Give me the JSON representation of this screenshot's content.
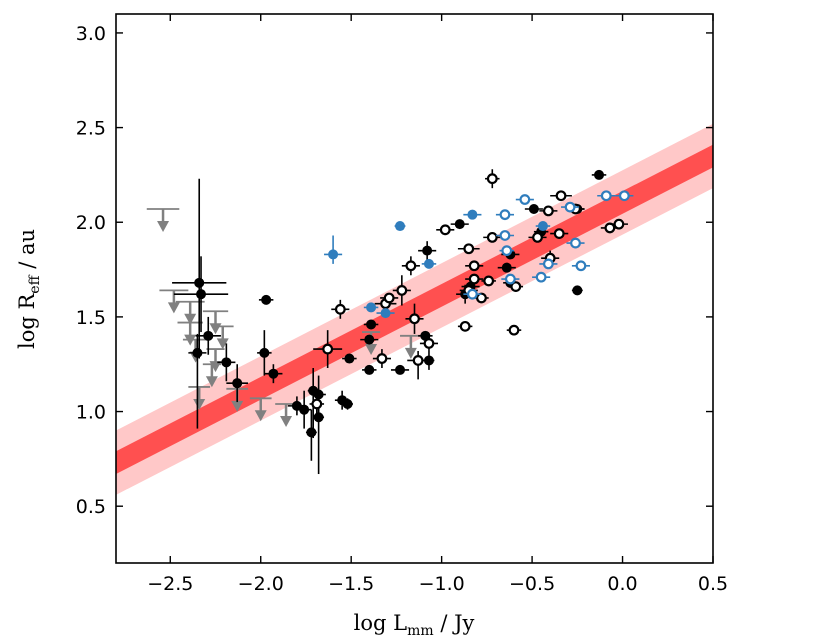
{
  "chart_data": {
    "type": "scatter",
    "title": "",
    "xlabel": {
      "main": "log L",
      "sub": "mm",
      "unit": " / Jy"
    },
    "ylabel": {
      "main": "log R",
      "sub": "eff",
      "unit": " / au"
    },
    "xlim": [
      -2.8,
      0.5
    ],
    "ylim": [
      0.2,
      3.1
    ],
    "xticks": [
      -2.5,
      -2.0,
      -1.5,
      -1.0,
      -0.5,
      0.0,
      0.5
    ],
    "xtick_labels": [
      "−2.5",
      "−2.0",
      "−1.5",
      "−1.0",
      "−0.5",
      "0.0",
      "0.5"
    ],
    "yticks": [
      0.5,
      1.0,
      1.5,
      2.0,
      2.5,
      3.0
    ],
    "ytick_labels": [
      "0.5",
      "1.0",
      "1.5",
      "2.0",
      "2.5",
      "3.0"
    ],
    "colors": {
      "fit_inner": "#ff5050",
      "fit_outer": "#ffc8c8",
      "black_points": "#000000",
      "blue_points": "#2f7dbd",
      "upper_limits": "#808080"
    },
    "fit": {
      "x": [
        -2.8,
        0.5
      ],
      "y": [
        0.73,
        2.35
      ],
      "inner_halfwidth": 0.06,
      "outer_halfwidth": 0.17
    },
    "series": [
      {
        "name": "black filled",
        "marker": "filled",
        "points": [
          {
            "x": -2.34,
            "y": 1.68,
            "xerr": 0.15,
            "yerr": [
              0.4,
              0.55
            ]
          },
          {
            "x": -2.33,
            "y": 1.62,
            "xerr": 0.15,
            "yerr": [
              0.2,
              0.2
            ]
          },
          {
            "x": -2.29,
            "y": 1.4,
            "xerr": 0.07,
            "yerr": [
              0.1,
              0.1
            ]
          },
          {
            "x": -2.35,
            "y": 1.31,
            "xerr": 0.05,
            "yerr": [
              0.4,
              0.1
            ]
          },
          {
            "x": -2.19,
            "y": 1.26,
            "xerr": 0.05,
            "yerr": [
              0.1,
              0.1
            ]
          },
          {
            "x": -2.13,
            "y": 1.15,
            "xerr": 0.06,
            "yerr": [
              0.1,
              0.1
            ]
          },
          {
            "x": -1.97,
            "y": 1.59,
            "xerr": 0.04,
            "yerr": [
              0.02,
              0.02
            ]
          },
          {
            "x": -1.98,
            "y": 1.31,
            "xerr": 0.04,
            "yerr": [
              0.12,
              0.12
            ]
          },
          {
            "x": -1.93,
            "y": 1.2,
            "xerr": 0.05,
            "yerr": [
              0.05,
              0.05
            ]
          },
          {
            "x": -1.8,
            "y": 1.03,
            "xerr": 0.05,
            "yerr": [
              0.05,
              0.05
            ]
          },
          {
            "x": -1.76,
            "y": 1.01,
            "xerr": 0.04,
            "yerr": [
              0.1,
              0.1
            ]
          },
          {
            "x": -1.71,
            "y": 1.11,
            "xerr": 0.03,
            "yerr": [
              0.25,
              0.12
            ]
          },
          {
            "x": -1.68,
            "y": 1.09,
            "xerr": 0.04,
            "yerr": [
              0.1,
              0.1
            ]
          },
          {
            "x": -1.72,
            "y": 0.89,
            "xerr": 0.03,
            "yerr": [
              0.15,
              0.12
            ]
          },
          {
            "x": -1.68,
            "y": 0.97,
            "xerr": 0.03,
            "yerr": [
              0.3,
              0.1
            ]
          },
          {
            "x": -1.55,
            "y": 1.06,
            "xerr": 0.04,
            "yerr": [
              0.05,
              0.05
            ]
          },
          {
            "x": -1.52,
            "y": 1.04,
            "xerr": 0.03,
            "yerr": [
              0.03,
              0.03
            ]
          },
          {
            "x": -1.51,
            "y": 1.28,
            "xerr": 0.04,
            "yerr": [
              0.02,
              0.02
            ]
          },
          {
            "x": -1.39,
            "y": 1.46,
            "xerr": 0.04,
            "yerr": [
              0.02,
              0.02
            ]
          },
          {
            "x": -1.4,
            "y": 1.38,
            "xerr": 0.05,
            "yerr": [
              0.02,
              0.02
            ]
          },
          {
            "x": -1.4,
            "y": 1.22,
            "xerr": 0.04,
            "yerr": [
              0.02,
              0.02
            ]
          },
          {
            "x": -1.23,
            "y": 1.22,
            "xerr": 0.05,
            "yerr": [
              0.02,
              0.02
            ]
          },
          {
            "x": -1.08,
            "y": 1.85,
            "xerr": 0.05,
            "yerr": [
              0.05,
              0.05
            ]
          },
          {
            "x": -1.09,
            "y": 1.4,
            "xerr": 0.04,
            "yerr": [
              0.02,
              0.02
            ]
          },
          {
            "x": -1.07,
            "y": 1.27,
            "xerr": 0.03,
            "yerr": [
              0.05,
              0.05
            ]
          },
          {
            "x": -0.9,
            "y": 1.99,
            "xerr": 0.05,
            "yerr": [
              0.02,
              0.02
            ]
          },
          {
            "x": -0.87,
            "y": 1.62,
            "xerr": 0.05,
            "yerr": [
              0.05,
              0.05
            ]
          },
          {
            "x": -0.84,
            "y": 1.66,
            "xerr": 0.05,
            "yerr": [
              0.02,
              0.02
            ]
          },
          {
            "x": -0.62,
            "y": 1.83,
            "xerr": 0.05,
            "yerr": [
              0.02,
              0.02
            ]
          },
          {
            "x": -0.64,
            "y": 1.76,
            "xerr": 0.05,
            "yerr": [
              0.02,
              0.02
            ]
          },
          {
            "x": -0.62,
            "y": 1.68,
            "xerr": 0.04,
            "yerr": [
              0.02,
              0.02
            ]
          },
          {
            "x": -0.49,
            "y": 2.07,
            "xerr": 0.05,
            "yerr": [
              0.02,
              0.02
            ]
          },
          {
            "x": -0.45,
            "y": 1.95,
            "xerr": 0.04,
            "yerr": [
              0.02,
              0.02
            ]
          },
          {
            "x": -0.25,
            "y": 2.07,
            "xerr": 0.04,
            "yerr": [
              0.02,
              0.02
            ]
          },
          {
            "x": -0.13,
            "y": 2.25,
            "xerr": 0.04,
            "yerr": [
              0.02,
              0.02
            ]
          },
          {
            "x": -0.25,
            "y": 1.64,
            "xerr": 0.03,
            "yerr": [
              0.02,
              0.02
            ]
          }
        ]
      },
      {
        "name": "black open",
        "marker": "open",
        "points": [
          {
            "x": -1.63,
            "y": 1.33,
            "xerr": 0.08,
            "yerr": [
              0.1,
              0.1
            ]
          },
          {
            "x": -1.56,
            "y": 1.54,
            "xerr": 0.05,
            "yerr": [
              0.05,
              0.05
            ]
          },
          {
            "x": -1.69,
            "y": 1.04,
            "xerr": 0.04,
            "yerr": [
              0.05,
              0.05
            ]
          },
          {
            "x": -1.33,
            "y": 1.28,
            "xerr": 0.05,
            "yerr": [
              0.05,
              0.05
            ]
          },
          {
            "x": -1.31,
            "y": 1.57,
            "xerr": 0.06,
            "yerr": [
              0.04,
              0.04
            ]
          },
          {
            "x": -1.29,
            "y": 1.6,
            "xerr": 0.05,
            "yerr": [
              0.02,
              0.02
            ]
          },
          {
            "x": -1.22,
            "y": 1.64,
            "xerr": 0.05,
            "yerr": [
              0.08,
              0.08
            ]
          },
          {
            "x": -1.17,
            "y": 1.77,
            "xerr": 0.05,
            "yerr": [
              0.05,
              0.05
            ]
          },
          {
            "x": -1.15,
            "y": 1.49,
            "xerr": 0.05,
            "yerr": [
              0.08,
              0.08
            ]
          },
          {
            "x": -1.13,
            "y": 1.27,
            "xerr": 0.06,
            "yerr": [
              0.1,
              0.05
            ]
          },
          {
            "x": -1.07,
            "y": 1.36,
            "xerr": 0.05,
            "yerr": [
              0.04,
              0.04
            ]
          },
          {
            "x": -0.98,
            "y": 1.96,
            "xerr": 0.05,
            "yerr": [
              0.02,
              0.02
            ]
          },
          {
            "x": -0.85,
            "y": 1.86,
            "xerr": 0.06,
            "yerr": [
              0.02,
              0.02
            ]
          },
          {
            "x": -0.82,
            "y": 1.77,
            "xerr": 0.05,
            "yerr": [
              0.02,
              0.02
            ]
          },
          {
            "x": -0.82,
            "y": 1.7,
            "xerr": 0.05,
            "yerr": [
              0.02,
              0.02
            ]
          },
          {
            "x": -0.85,
            "y": 1.64,
            "xerr": 0.05,
            "yerr": [
              0.02,
              0.02
            ]
          },
          {
            "x": -0.78,
            "y": 1.6,
            "xerr": 0.04,
            "yerr": [
              0.02,
              0.02
            ]
          },
          {
            "x": -0.74,
            "y": 1.69,
            "xerr": 0.04,
            "yerr": [
              0.02,
              0.02
            ]
          },
          {
            "x": -0.87,
            "y": 1.45,
            "xerr": 0.04,
            "yerr": [
              0.02,
              0.02
            ]
          },
          {
            "x": -0.72,
            "y": 2.23,
            "xerr": 0.04,
            "yerr": [
              0.05,
              0.05
            ]
          },
          {
            "x": -0.72,
            "y": 1.92,
            "xerr": 0.05,
            "yerr": [
              0.02,
              0.02
            ]
          },
          {
            "x": -0.6,
            "y": 1.43,
            "xerr": 0.04,
            "yerr": [
              0.02,
              0.02
            ]
          },
          {
            "x": -0.59,
            "y": 1.66,
            "xerr": 0.04,
            "yerr": [
              0.02,
              0.02
            ]
          },
          {
            "x": -0.47,
            "y": 1.92,
            "xerr": 0.05,
            "yerr": [
              0.02,
              0.02
            ]
          },
          {
            "x": -0.41,
            "y": 2.06,
            "xerr": 0.05,
            "yerr": [
              0.02,
              0.02
            ]
          },
          {
            "x": -0.4,
            "y": 1.81,
            "xerr": 0.05,
            "yerr": [
              0.04,
              0.04
            ]
          },
          {
            "x": -0.34,
            "y": 2.14,
            "xerr": 0.06,
            "yerr": [
              0.02,
              0.02
            ]
          },
          {
            "x": -0.35,
            "y": 1.94,
            "xerr": 0.05,
            "yerr": [
              0.02,
              0.02
            ]
          },
          {
            "x": -0.26,
            "y": 2.07,
            "xerr": 0.05,
            "yerr": [
              0.02,
              0.02
            ]
          },
          {
            "x": -0.07,
            "y": 1.97,
            "xerr": 0.05,
            "yerr": [
              0.02,
              0.02
            ]
          },
          {
            "x": -0.02,
            "y": 1.99,
            "xerr": 0.05,
            "yerr": [
              0.02,
              0.02
            ]
          }
        ]
      },
      {
        "name": "blue filled",
        "marker": "filled",
        "points": [
          {
            "x": -1.6,
            "y": 1.83,
            "xerr": 0.05,
            "yerr": [
              0.05,
              0.1
            ]
          },
          {
            "x": -1.23,
            "y": 1.98,
            "xerr": 0.03,
            "yerr": [
              0.02,
              0.02
            ]
          },
          {
            "x": -1.39,
            "y": 1.55,
            "xerr": 0.04,
            "yerr": [
              0.02,
              0.02
            ]
          },
          {
            "x": -1.31,
            "y": 1.52,
            "xerr": 0.05,
            "yerr": [
              0.02,
              0.02
            ]
          },
          {
            "x": -1.07,
            "y": 1.78,
            "xerr": 0.04,
            "yerr": [
              0.02,
              0.02
            ]
          },
          {
            "x": -0.83,
            "y": 2.04,
            "xerr": 0.05,
            "yerr": [
              0.02,
              0.02
            ]
          },
          {
            "x": -0.44,
            "y": 1.98,
            "xerr": 0.04,
            "yerr": [
              0.02,
              0.02
            ]
          }
        ]
      },
      {
        "name": "blue open",
        "marker": "open",
        "points": [
          {
            "x": -0.83,
            "y": 1.62,
            "xerr": 0.05,
            "yerr": [
              0.02,
              0.02
            ]
          },
          {
            "x": -0.65,
            "y": 2.04,
            "xerr": 0.05,
            "yerr": [
              0.02,
              0.02
            ]
          },
          {
            "x": -0.65,
            "y": 1.93,
            "xerr": 0.05,
            "yerr": [
              0.02,
              0.02
            ]
          },
          {
            "x": -0.64,
            "y": 1.85,
            "xerr": 0.04,
            "yerr": [
              0.02,
              0.02
            ]
          },
          {
            "x": -0.62,
            "y": 1.7,
            "xerr": 0.05,
            "yerr": [
              0.02,
              0.02
            ]
          },
          {
            "x": -0.54,
            "y": 2.12,
            "xerr": 0.05,
            "yerr": [
              0.02,
              0.02
            ]
          },
          {
            "x": -0.45,
            "y": 1.71,
            "xerr": 0.05,
            "yerr": [
              0.02,
              0.02
            ]
          },
          {
            "x": -0.41,
            "y": 1.78,
            "xerr": 0.05,
            "yerr": [
              0.02,
              0.02
            ]
          },
          {
            "x": -0.29,
            "y": 2.08,
            "xerr": 0.05,
            "yerr": [
              0.02,
              0.02
            ]
          },
          {
            "x": -0.26,
            "y": 1.89,
            "xerr": 0.05,
            "yerr": [
              0.02,
              0.02
            ]
          },
          {
            "x": -0.23,
            "y": 1.77,
            "xerr": 0.05,
            "yerr": [
              0.02,
              0.02
            ]
          },
          {
            "x": -0.09,
            "y": 2.14,
            "xerr": 0.05,
            "yerr": [
              0.02,
              0.02
            ]
          },
          {
            "x": 0.01,
            "y": 2.14,
            "xerr": 0.05,
            "yerr": [
              0.02,
              0.02
            ]
          }
        ]
      },
      {
        "name": "upper limits",
        "marker": "arrow-down",
        "points": [
          {
            "x": -2.54,
            "y": 2.07,
            "xerr": 0.09
          },
          {
            "x": -2.48,
            "y": 1.64,
            "xerr": 0.08
          },
          {
            "x": -2.39,
            "y": 1.58,
            "xerr": 0.08
          },
          {
            "x": -2.39,
            "y": 1.47,
            "xerr": 0.07
          },
          {
            "x": -2.36,
            "y": 1.38,
            "xerr": 0.07
          },
          {
            "x": -2.25,
            "y": 1.53,
            "xerr": 0.07
          },
          {
            "x": -2.21,
            "y": 1.45,
            "xerr": 0.06
          },
          {
            "x": -2.25,
            "y": 1.33,
            "xerr": 0.05
          },
          {
            "x": -2.27,
            "y": 1.25,
            "xerr": 0.05
          },
          {
            "x": -2.34,
            "y": 1.13,
            "xerr": 0.06
          },
          {
            "x": -2.13,
            "y": 1.12,
            "xerr": 0.06
          },
          {
            "x": -2.0,
            "y": 1.07,
            "xerr": 0.06
          },
          {
            "x": -1.86,
            "y": 1.04,
            "xerr": 0.06
          },
          {
            "x": -1.39,
            "y": 1.42,
            "xerr": 0.05
          },
          {
            "x": -1.17,
            "y": 1.4,
            "xerr": 0.06
          }
        ]
      }
    ]
  }
}
